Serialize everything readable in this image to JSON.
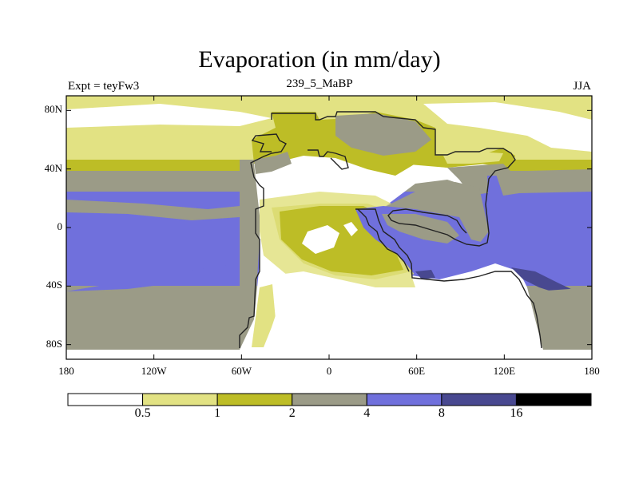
{
  "title": "Evaporation (in mm/day)",
  "subtitle_left": "Expt = teyFw3",
  "subtitle_center": "239_5_MaBP",
  "subtitle_right": "JJA",
  "chart_data": {
    "type": "heatmap",
    "title": "Evaporation (in mm/day)",
    "xlim": [
      -180,
      180
    ],
    "ylim": [
      -90,
      90
    ],
    "x_ticks": [
      {
        "value": -180,
        "label": "180"
      },
      {
        "value": -120,
        "label": "120W"
      },
      {
        "value": -60,
        "label": "60W"
      },
      {
        "value": 0,
        "label": "0"
      },
      {
        "value": 60,
        "label": "60E"
      },
      {
        "value": 120,
        "label": "120E"
      },
      {
        "value": 180,
        "label": "180"
      }
    ],
    "y_ticks": [
      {
        "value": 80,
        "label": "80N"
      },
      {
        "value": 40,
        "label": "40N"
      },
      {
        "value": 0,
        "label": "0"
      },
      {
        "value": -40,
        "label": "40S"
      },
      {
        "value": -80,
        "label": "80S"
      }
    ],
    "levels": [
      0.5,
      1,
      2,
      4,
      8,
      16
    ],
    "level_labels": [
      "0.5",
      "1",
      "2",
      "4",
      "8",
      "16"
    ],
    "colors": [
      "#ffffff",
      "#e2e283",
      "#bdbd26",
      "#9b9b87",
      "#7070dc",
      "#484890",
      "#000000"
    ]
  }
}
